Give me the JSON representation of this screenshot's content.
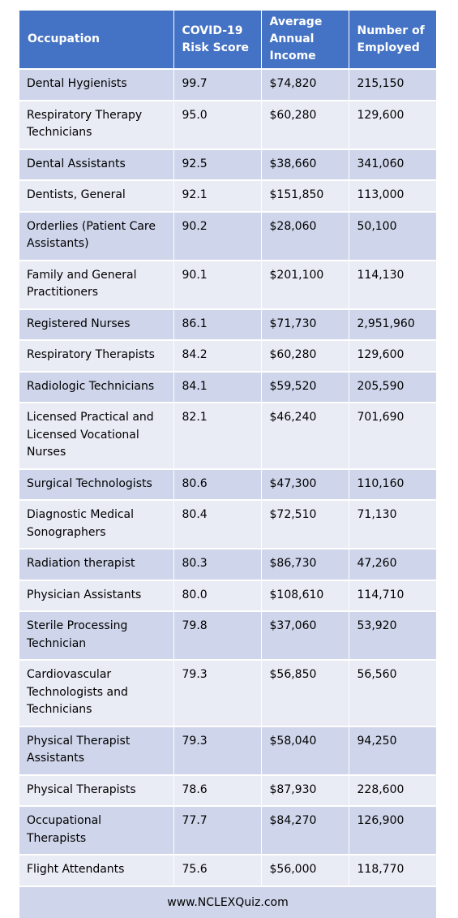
{
  "table": {
    "headers": {
      "occupation": "Occupation",
      "risk": [
        "COVID-19",
        "Risk Score"
      ],
      "income": [
        "Average",
        "Annual",
        "Income"
      ],
      "employed": [
        "Number of",
        "Employed"
      ]
    },
    "rows": [
      {
        "occupation": [
          "Dental Hygienists"
        ],
        "risk": "99.7",
        "income": "$74,820",
        "employed": "215,150"
      },
      {
        "occupation": [
          "Respiratory Therapy",
          "Technicians"
        ],
        "risk": "95.0",
        "income": "$60,280",
        "employed": "129,600"
      },
      {
        "occupation": [
          "Dental Assistants"
        ],
        "risk": "92.5",
        "income": "$38,660",
        "employed": "341,060"
      },
      {
        "occupation": [
          "Dentists, General"
        ],
        "risk": "92.1",
        "income": "$151,850",
        "employed": "113,000"
      },
      {
        "occupation": [
          "Orderlies (Patient Care",
          "Assistants)"
        ],
        "risk": "90.2",
        "income": "$28,060",
        "employed": "50,100"
      },
      {
        "occupation": [
          "Family and General",
          "Practitioners"
        ],
        "risk": "90.1",
        "income": "$201,100",
        "employed": "114,130"
      },
      {
        "occupation": [
          "Registered Nurses"
        ],
        "risk": "86.1",
        "income": "$71,730",
        "employed": "2,951,960"
      },
      {
        "occupation": [
          "Respiratory Therapists"
        ],
        "risk": "84.2",
        "income": "$60,280",
        "employed": "129,600"
      },
      {
        "occupation": [
          "Radiologic Technicians"
        ],
        "risk": "84.1",
        "income": "$59,520",
        "employed": "205,590"
      },
      {
        "occupation": [
          "Licensed Practical and",
          "Licensed Vocational",
          "Nurses"
        ],
        "risk": "82.1",
        "income": "$46,240",
        "employed": "701,690"
      },
      {
        "occupation": [
          "Surgical Technologists"
        ],
        "risk": "80.6",
        "income": "$47,300",
        "employed": "110,160"
      },
      {
        "occupation": [
          "Diagnostic Medical",
          "Sonographers"
        ],
        "risk": "80.4",
        "income": "$72,510",
        "employed": "71,130"
      },
      {
        "occupation": [
          "Radiation therapist"
        ],
        "risk": "80.3",
        "income": "$86,730",
        "employed": "47,260"
      },
      {
        "occupation": [
          "Physician Assistants"
        ],
        "risk": "80.0",
        "income": "$108,610",
        "employed": "114,710"
      },
      {
        "occupation": [
          "Sterile Processing",
          "Technician"
        ],
        "risk": "79.8",
        "income": "$37,060",
        "employed": "53,920"
      },
      {
        "occupation": [
          "Cardiovascular",
          "Technologists and",
          "Technicians"
        ],
        "risk": "79.3",
        "income": "$56,850",
        "employed": "56,560"
      },
      {
        "occupation": [
          "Physical Therapist",
          "Assistants"
        ],
        "risk": "79.3",
        "income": "$58,040",
        "employed": "94,250"
      },
      {
        "occupation": [
          "Physical Therapists"
        ],
        "risk": "78.6",
        "income": "$87,930",
        "employed": "228,600"
      },
      {
        "occupation": [
          "Occupational",
          "Therapists"
        ],
        "risk": "77.7",
        "income": "$84,270",
        "employed": "126,900"
      },
      {
        "occupation": [
          "Flight Attendants"
        ],
        "risk": "75.6",
        "income": "$56,000",
        "employed": "118,770"
      }
    ]
  },
  "footer": {
    "website": "www.NCLEXQuiz.com"
  },
  "colors": {
    "header_bg": "#4472c4",
    "row_dark": "#cfd5ea",
    "row_light": "#e9ebf5"
  }
}
